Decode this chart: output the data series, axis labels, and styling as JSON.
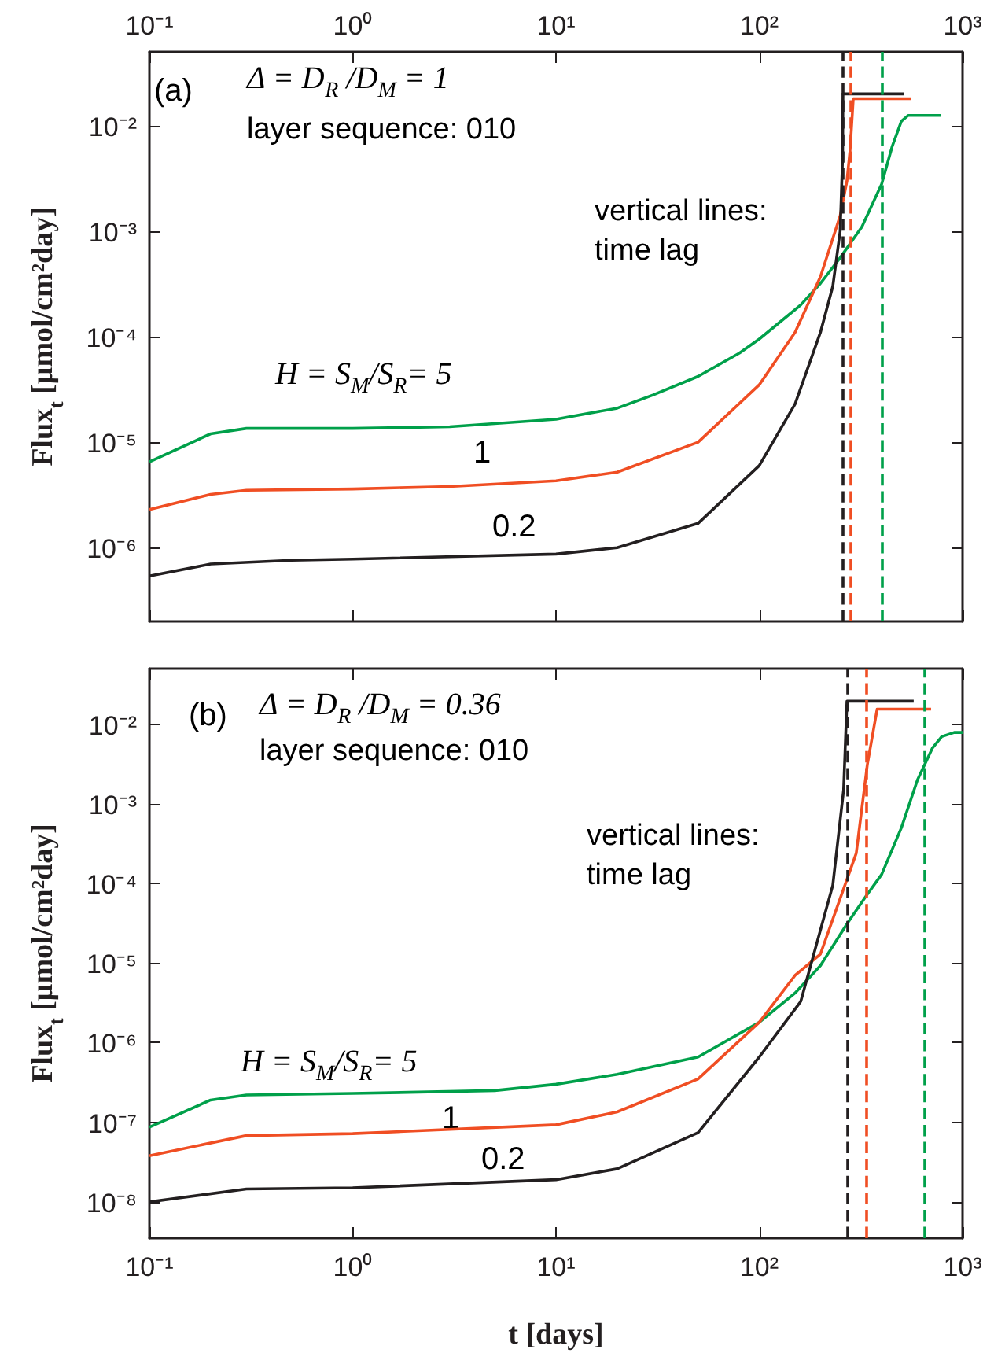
{
  "chart_data": [
    {
      "type": "line",
      "xlim": [
        0.1,
        1000
      ],
      "xticks": [
        {
          "value": 0.1,
          "label": "10⁻¹"
        },
        {
          "value": 1,
          "label": "10⁰"
        },
        {
          "value": 10,
          "label": "10¹"
        },
        {
          "value": 100,
          "label": "10²"
        },
        {
          "value": 1000,
          "label": "10³"
        }
      ],
      "ylim": [
        2e-07,
        0.05
      ],
      "yticks": [
        {
          "value": 1e-06,
          "label": "10⁻⁶"
        },
        {
          "value": 1e-05,
          "label": "10⁻⁵"
        },
        {
          "value": 0.0001,
          "label": "10⁻⁴"
        },
        {
          "value": 0.001,
          "label": "10⁻³"
        },
        {
          "value": 0.01,
          "label": "10⁻²"
        }
      ],
      "log": "xy",
      "ylabel": "Flux$_{t}$ [μmol/cm²day]",
      "annotations": [
        "(a)",
        "Δ = D$_{R}$ /D$_{M}$ = 1",
        "layer sequence: 010",
        "vertical lines:",
        "time lag"
      ],
      "series": [
        {
          "name": "H = S$_{M}$/S$_{R}$= 5",
          "color": "#00a04a",
          "x": [
            0.1,
            0.2,
            0.3,
            1,
            3,
            10,
            20,
            30,
            50,
            80,
            100,
            160,
            200,
            250,
            320,
            400,
            450,
            500,
            540,
            780
          ],
          "values": [
            6.5e-06,
            1.2e-05,
            1.35e-05,
            1.35e-05,
            1.4e-05,
            1.65e-05,
            2.1e-05,
            2.8e-05,
            4.2e-05,
            7e-05,
            9.5e-05,
            0.0002,
            0.00032,
            0.00056,
            0.0011,
            0.0028,
            0.0063,
            0.011,
            0.0125,
            0.0125
          ]
        },
        {
          "name": "1",
          "color": "#f04e23",
          "x": [
            0.1,
            0.2,
            0.3,
            1,
            3,
            10,
            20,
            50,
            100,
            150,
            200,
            250,
            270,
            280,
            290,
            560
          ],
          "values": [
            2.3e-06,
            3.2e-06,
            3.5e-06,
            3.6e-06,
            3.8e-06,
            4.3e-06,
            5.2e-06,
            1e-05,
            3.5e-05,
            0.00011,
            0.00037,
            0.0014,
            0.003,
            0.006,
            0.018,
            0.018
          ]
        },
        {
          "name": "0.2",
          "color": "#231f20",
          "x": [
            0.1,
            0.2,
            0.5,
            1,
            10,
            20,
            50,
            100,
            150,
            200,
            230,
            250,
            257,
            258,
            515
          ],
          "values": [
            5.4e-07,
            7e-07,
            7.6e-07,
            7.8e-07,
            8.7e-07,
            1e-06,
            1.7e-06,
            6e-06,
            2.3e-05,
            0.00011,
            0.0003,
            0.001,
            0.005,
            0.02,
            0.02
          ]
        }
      ],
      "ref_lines": [
        {
          "axis": "x",
          "value": 257,
          "color": "#231f20",
          "line_style": "dashed"
        },
        {
          "axis": "x",
          "value": 282,
          "color": "#f04e23",
          "line_style": "dashed"
        },
        {
          "axis": "x",
          "value": 398,
          "color": "#00a04a",
          "line_style": "dashed"
        }
      ]
    },
    {
      "type": "line",
      "xlim": [
        0.1,
        1000
      ],
      "xticks": [
        {
          "value": 0.1,
          "label": "10⁻¹"
        },
        {
          "value": 1,
          "label": "10⁰"
        },
        {
          "value": 10,
          "label": "10¹"
        },
        {
          "value": 100,
          "label": "10²"
        },
        {
          "value": 1000,
          "label": "10³"
        }
      ],
      "ylim": [
        3.5e-09,
        0.05
      ],
      "yticks": [
        {
          "value": 1e-08,
          "label": "10⁻⁸"
        },
        {
          "value": 1e-07,
          "label": "10⁻⁷"
        },
        {
          "value": 1e-06,
          "label": "10⁻⁶"
        },
        {
          "value": 1e-05,
          "label": "10⁻⁵"
        },
        {
          "value": 0.0001,
          "label": "10⁻⁴"
        },
        {
          "value": 0.001,
          "label": "10⁻³"
        },
        {
          "value": 0.01,
          "label": "10⁻²"
        }
      ],
      "log": "xy",
      "xlabel": "t [days]",
      "ylabel": "Flux$_{t}$ [μmol/cm²day]",
      "annotations": [
        "(b)",
        "Δ = D$_{R}$ /D$_{M}$ = 0.36",
        "layer sequence: 010",
        "vertical lines:",
        "time lag"
      ],
      "series": [
        {
          "name": "H = S$_{M}$/S$_{R}$= 5",
          "color": "#00a04a",
          "x": [
            0.1,
            0.2,
            0.3,
            1,
            5,
            10,
            20,
            50,
            100,
            150,
            200,
            270,
            336,
            400,
            500,
            600,
            710,
            790,
            910,
            1000
          ],
          "values": [
            8.7e-08,
            1.9e-07,
            2.2e-07,
            2.3e-07,
            2.5e-07,
            3e-07,
            4e-07,
            6.6e-07,
            1.8e-06,
            4.2e-06,
            9.3e-06,
            3.1e-05,
            7e-05,
            0.00013,
            0.0005,
            0.002,
            0.005,
            0.007,
            0.0079,
            0.0079
          ]
        },
        {
          "name": "1",
          "color": "#f04e23",
          "x": [
            0.1,
            0.3,
            1,
            10,
            20,
            50,
            100,
            150,
            200,
            300,
            340,
            380,
            700
          ],
          "values": [
            3.8e-08,
            6.8e-08,
            7.2e-08,
            9.3e-08,
            1.35e-07,
            3.5e-07,
            1.8e-06,
            7e-06,
            1.3e-05,
            0.00024,
            0.0031,
            0.0155,
            0.0155
          ]
        },
        {
          "name": "0.2",
          "color": "#231f20",
          "x": [
            0.1,
            0.3,
            1,
            10,
            20,
            50,
            100,
            160,
            230,
            260,
            270,
            575
          ],
          "values": [
            1e-08,
            1.45e-08,
            1.5e-08,
            1.9e-08,
            2.6e-08,
            7.4e-08,
            6.6e-07,
            3.3e-06,
            9.5e-05,
            0.0015,
            0.0195,
            0.0195
          ]
        }
      ],
      "ref_lines": [
        {
          "axis": "x",
          "value": 270,
          "color": "#231f20",
          "line_style": "dashed"
        },
        {
          "axis": "x",
          "value": 336,
          "color": "#f04e23",
          "line_style": "dashed"
        },
        {
          "axis": "x",
          "value": 650,
          "color": "#00a04a",
          "line_style": "dashed"
        }
      ]
    }
  ]
}
